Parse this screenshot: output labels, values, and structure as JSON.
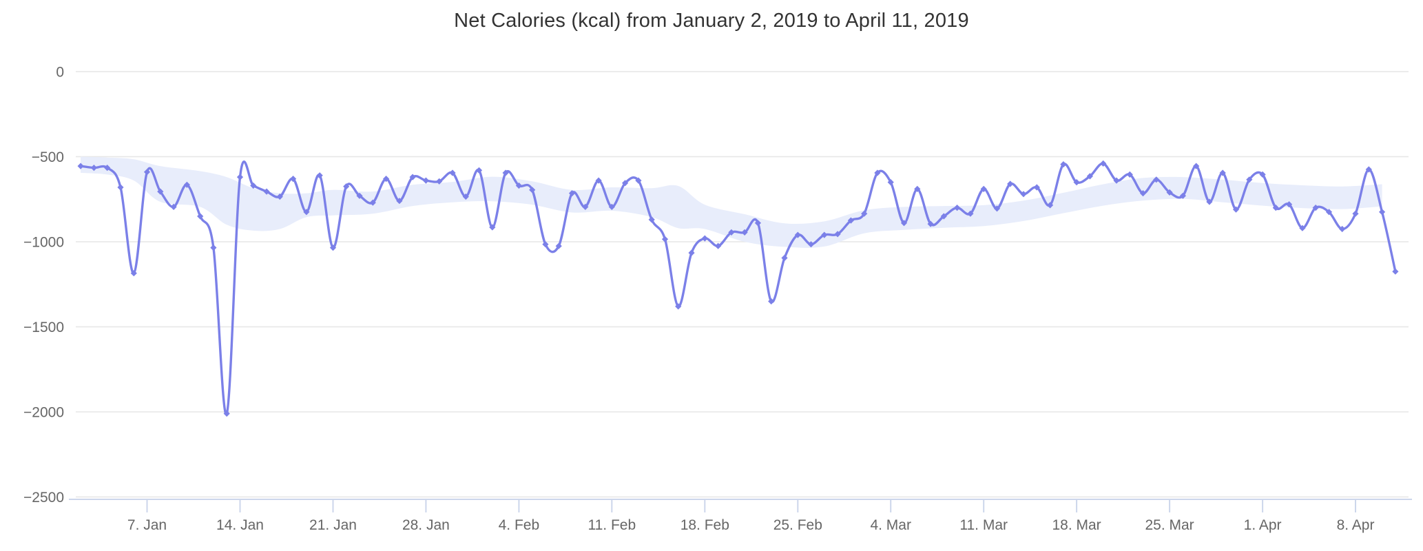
{
  "chart_data": {
    "type": "line",
    "title": "Net Calories (kcal) from January 2, 2019 to April 11, 2019",
    "xlabel": "",
    "ylabel": "",
    "ylim": [
      -2500,
      0
    ],
    "grid": true,
    "legend": false,
    "x_range": {
      "start": "2019-01-02",
      "end": "2019-04-11",
      "interval": "daily",
      "num_points": 100
    },
    "y_ticks": [
      {
        "label": "0",
        "value": 0
      },
      {
        "label": "−500",
        "value": -500
      },
      {
        "label": "−1000",
        "value": -1000
      },
      {
        "label": "−1500",
        "value": -1500
      },
      {
        "label": "−2000",
        "value": -2000
      },
      {
        "label": "−2500",
        "value": -2500
      }
    ],
    "x_ticks": [
      {
        "label": "7. Jan",
        "day": 5
      },
      {
        "label": "14. Jan",
        "day": 12
      },
      {
        "label": "21. Jan",
        "day": 19
      },
      {
        "label": "28. Jan",
        "day": 26
      },
      {
        "label": "4. Feb",
        "day": 33
      },
      {
        "label": "11. Feb",
        "day": 40
      },
      {
        "label": "18. Feb",
        "day": 47
      },
      {
        "label": "25. Feb",
        "day": 54
      },
      {
        "label": "4. Mar",
        "day": 61
      },
      {
        "label": "11. Mar",
        "day": 68
      },
      {
        "label": "18. Mar",
        "day": 75
      },
      {
        "label": "25. Mar",
        "day": 82
      },
      {
        "label": "1. Apr",
        "day": 89
      },
      {
        "label": "8. Apr",
        "day": 96
      }
    ],
    "series": [
      {
        "name": "Net Calories (kcal)",
        "type": "spline",
        "marker": "diamond",
        "color": "#7b80e8",
        "dates": [
          "2019-01-02",
          "2019-01-03",
          "2019-01-04",
          "2019-01-05",
          "2019-01-06",
          "2019-01-07",
          "2019-01-08",
          "2019-01-09",
          "2019-01-10",
          "2019-01-11",
          "2019-01-12",
          "2019-01-13",
          "2019-01-14",
          "2019-01-15",
          "2019-01-16",
          "2019-01-17",
          "2019-01-18",
          "2019-01-19",
          "2019-01-20",
          "2019-01-21",
          "2019-01-22",
          "2019-01-23",
          "2019-01-24",
          "2019-01-25",
          "2019-01-26",
          "2019-01-27",
          "2019-01-28",
          "2019-01-29",
          "2019-01-30",
          "2019-01-31",
          "2019-02-01",
          "2019-02-02",
          "2019-02-03",
          "2019-02-04",
          "2019-02-05",
          "2019-02-06",
          "2019-02-07",
          "2019-02-08",
          "2019-02-09",
          "2019-02-10",
          "2019-02-11",
          "2019-02-12",
          "2019-02-13",
          "2019-02-14",
          "2019-02-15",
          "2019-02-16",
          "2019-02-17",
          "2019-02-18",
          "2019-02-19",
          "2019-02-20",
          "2019-02-21",
          "2019-02-22",
          "2019-02-23",
          "2019-02-24",
          "2019-02-25",
          "2019-02-26",
          "2019-02-27",
          "2019-02-28",
          "2019-03-01",
          "2019-03-02",
          "2019-03-03",
          "2019-03-04",
          "2019-03-05",
          "2019-03-06",
          "2019-03-07",
          "2019-03-08",
          "2019-03-09",
          "2019-03-10",
          "2019-03-11",
          "2019-03-12",
          "2019-03-13",
          "2019-03-14",
          "2019-03-15",
          "2019-03-16",
          "2019-03-17",
          "2019-03-18",
          "2019-03-19",
          "2019-03-20",
          "2019-03-21",
          "2019-03-22",
          "2019-03-23",
          "2019-03-24",
          "2019-03-25",
          "2019-03-26",
          "2019-03-27",
          "2019-03-28",
          "2019-03-29",
          "2019-03-30",
          "2019-03-31",
          "2019-04-01",
          "2019-04-02",
          "2019-04-03",
          "2019-04-04",
          "2019-04-05",
          "2019-04-06",
          "2019-04-07",
          "2019-04-08",
          "2019-04-09",
          "2019-04-10",
          "2019-04-11"
        ],
        "values": [
          -555,
          -565,
          -565,
          -680,
          -1185,
          -590,
          -705,
          -795,
          -665,
          -850,
          -1035,
          -2010,
          -620,
          -670,
          -705,
          -735,
          -630,
          -825,
          -610,
          -1035,
          -675,
          -730,
          -770,
          -630,
          -760,
          -620,
          -640,
          -645,
          -595,
          -735,
          -580,
          -915,
          -595,
          -670,
          -695,
          -1015,
          -1025,
          -715,
          -795,
          -640,
          -795,
          -655,
          -640,
          -870,
          -985,
          -1380,
          -1065,
          -980,
          -1025,
          -945,
          -945,
          -890,
          -1350,
          -1095,
          -960,
          -1015,
          -960,
          -955,
          -875,
          -835,
          -595,
          -650,
          -890,
          -690,
          -895,
          -850,
          -800,
          -835,
          -690,
          -805,
          -660,
          -720,
          -680,
          -785,
          -545,
          -650,
          -615,
          -540,
          -640,
          -605,
          -715,
          -635,
          -710,
          -730,
          -555,
          -765,
          -595,
          -810,
          -635,
          -605,
          -800,
          -780,
          -920,
          -800,
          -825,
          -925,
          -835,
          -575,
          -825,
          -1175
        ]
      },
      {
        "name": "background-range-band",
        "type": "arearange",
        "color": "#e8edfb",
        "points_day_upper_lower": [
          [
            0,
            -500,
            -595
          ],
          [
            2,
            -505,
            -605
          ],
          [
            4,
            -515,
            -640
          ],
          [
            6,
            -555,
            -765
          ],
          [
            9,
            -585,
            -795
          ],
          [
            11,
            -620,
            -900
          ],
          [
            13,
            -685,
            -935
          ],
          [
            15,
            -715,
            -925
          ],
          [
            17,
            -715,
            -855
          ],
          [
            19,
            -695,
            -845
          ],
          [
            22,
            -705,
            -835
          ],
          [
            25,
            -665,
            -790
          ],
          [
            28,
            -648,
            -768
          ],
          [
            31,
            -618,
            -762
          ],
          [
            34,
            -645,
            -782
          ],
          [
            37,
            -695,
            -828
          ],
          [
            40,
            -680,
            -818
          ],
          [
            43,
            -685,
            -855
          ],
          [
            45,
            -672,
            -920
          ],
          [
            47,
            -782,
            -925
          ],
          [
            50,
            -838,
            -1000
          ],
          [
            53,
            -892,
            -1030
          ],
          [
            56,
            -880,
            -1028
          ],
          [
            59,
            -815,
            -950
          ],
          [
            62,
            -795,
            -930
          ],
          [
            65,
            -790,
            -918
          ],
          [
            68,
            -785,
            -908
          ],
          [
            71,
            -758,
            -878
          ],
          [
            74,
            -712,
            -832
          ],
          [
            77,
            -662,
            -788
          ],
          [
            80,
            -625,
            -758
          ],
          [
            83,
            -620,
            -748
          ],
          [
            86,
            -635,
            -768
          ],
          [
            89,
            -655,
            -788
          ],
          [
            92,
            -668,
            -802
          ],
          [
            95,
            -675,
            -808
          ],
          [
            98,
            -662,
            -792
          ]
        ]
      }
    ],
    "colors": {
      "line": "#7b80e8",
      "band": "#e8edfb",
      "gridline": "#e6e6e6",
      "axis_line": "#ccd6eb",
      "tick": "#ccd6eb",
      "axis_label": "#666666",
      "title": "#333333",
      "background": "#ffffff"
    }
  }
}
